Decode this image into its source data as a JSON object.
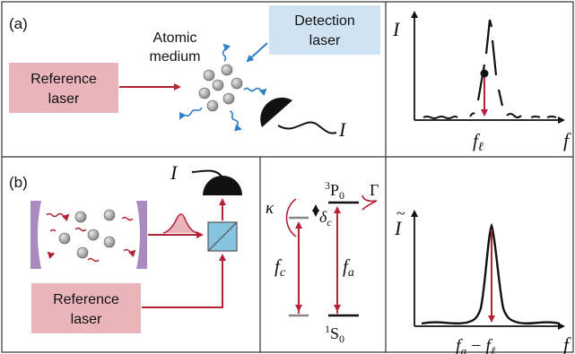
{
  "panel_a": {
    "tag": "(a)",
    "reference_laser": [
      "Reference",
      "laser"
    ],
    "detection_laser": [
      "Detection",
      "laser"
    ],
    "atomic_medium": [
      "Atomic",
      "medium"
    ],
    "signal_label": "I",
    "plot_ylabel": "I",
    "plot_xlabel": "f",
    "plot_marker": "f",
    "plot_marker_sub": "ℓ"
  },
  "panel_b": {
    "tag": "(b)",
    "reference_laser": [
      "Reference",
      "laser"
    ],
    "signal_label": "I",
    "level_labels": {
      "kappa": "κ",
      "delta_c": "δ",
      "delta_c_sub": "c",
      "gamma": "Γ",
      "upper_sup": "3",
      "upper": "P",
      "upper_sub": "0",
      "lower_sup": "1",
      "lower": "S",
      "lower_sub": "0",
      "f_c": "f",
      "f_c_sub": "c",
      "f_a": "f",
      "f_a_sub": "a"
    },
    "plot_ylabel": "I",
    "plot_xlabel": "f",
    "plot_marker_a": "f",
    "plot_marker_a_sub": "a",
    "plot_marker_minus": " − ",
    "plot_marker_l": "f",
    "plot_marker_l_sub": "ℓ"
  },
  "colors": {
    "laser_red": "#b22234",
    "wave_blue": "#2f7fc6",
    "detection_box": "#cfe3f2",
    "reference_box": "#e9b5bb",
    "mirror": "#a98bbf",
    "splitter": "#86c3df"
  }
}
